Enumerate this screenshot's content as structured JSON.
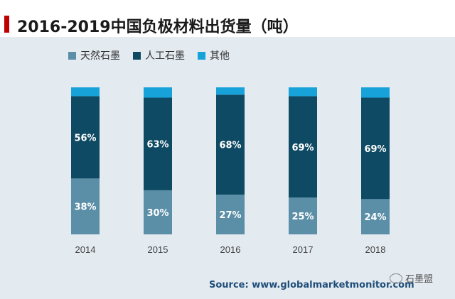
{
  "title": "2016-2019中国负极材料出货量（吨）",
  "source": "Source: www.globalmarketmonitor.com",
  "watermark": "石墨盟",
  "colors": {
    "natural": "#5b8fa8",
    "artificial": "#0e4a63",
    "other": "#17a2d9",
    "accent": "#c00000",
    "background": "#e3eaf0"
  },
  "chart_data": {
    "type": "bar",
    "stacked": true,
    "categories": [
      "2014",
      "2015",
      "2016",
      "2017",
      "2018"
    ],
    "series": [
      {
        "name": "天然石墨",
        "values": [
          38,
          30,
          27,
          25,
          24
        ],
        "labels": [
          "38%",
          "30%",
          "27%",
          "25%",
          "24%"
        ]
      },
      {
        "name": "人工石墨",
        "values": [
          56,
          63,
          68,
          69,
          69
        ],
        "labels": [
          "56%",
          "63%",
          "68%",
          "69%",
          "69%"
        ]
      },
      {
        "name": "其他",
        "values": [
          6,
          7,
          5,
          6,
          7
        ],
        "labels": [
          "",
          "",
          "",
          "",
          ""
        ]
      }
    ],
    "ylim": [
      0,
      100
    ],
    "legend": "top-left",
    "grid": false
  }
}
